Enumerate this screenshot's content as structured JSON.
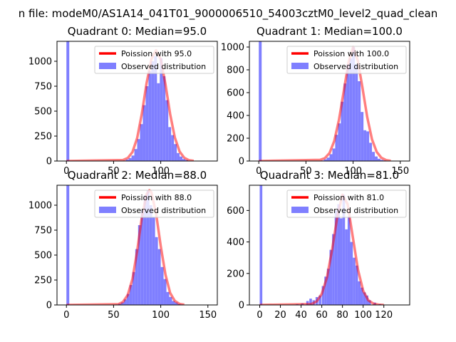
{
  "figure": {
    "suptitle": "n file: modeM0/AS1A14_041T01_9000006510_54003cztM0_level2_quad_clean"
  },
  "chart_data": [
    {
      "type": "bar",
      "title": "Quadrant 0: Median=95.0",
      "xlim": [
        -10,
        160
      ],
      "ylim": [
        0,
        1200
      ],
      "xticks": [
        0,
        50,
        100
      ],
      "yticks": [
        0,
        250,
        500,
        750,
        1000
      ],
      "legend": {
        "position": "top-right",
        "entries": [
          "Poission with 95.0",
          "Observed distribution"
        ]
      },
      "series": [
        {
          "name": "Observed distribution",
          "kind": "histogram",
          "color": "#7f7fff",
          "bin_width": 3.0,
          "bin_starts": [
            0,
            60,
            63,
            66,
            69,
            72,
            75,
            78,
            81,
            84,
            87,
            90,
            93,
            96,
            99,
            102,
            105,
            108,
            111,
            114,
            117,
            120,
            123,
            126
          ],
          "counts": [
            1200,
            5,
            15,
            30,
            55,
            120,
            220,
            370,
            560,
            750,
            900,
            1000,
            1050,
            780,
            1030,
            850,
            610,
            340,
            260,
            170,
            80,
            45,
            20,
            10
          ]
        },
        {
          "name": "Poission with 95.0",
          "kind": "curve",
          "color": "#ff0000",
          "x": [
            0,
            60,
            65,
            70,
            75,
            80,
            85,
            90,
            95,
            100,
            105,
            110,
            115,
            120,
            125,
            130,
            135
          ],
          "y": [
            0,
            10,
            30,
            90,
            230,
            475,
            780,
            1020,
            1110,
            1020,
            770,
            470,
            235,
            95,
            32,
            8,
            2
          ]
        }
      ]
    },
    {
      "type": "bar",
      "title": "Quadrant 1: Median=100.0",
      "xlim": [
        -10,
        160
      ],
      "ylim": [
        0,
        1050
      ],
      "xticks": [
        0,
        50,
        100,
        150
      ],
      "yticks": [
        0,
        200,
        400,
        600,
        800,
        1000
      ],
      "legend": {
        "position": "top-right",
        "entries": [
          "Poission with 100.0",
          "Observed distribution"
        ]
      },
      "series": [
        {
          "name": "Observed distribution",
          "kind": "histogram",
          "color": "#7f7fff",
          "bin_width": 3.0,
          "bin_starts": [
            0,
            66,
            69,
            72,
            75,
            78,
            81,
            84,
            87,
            90,
            93,
            96,
            99,
            102,
            105,
            108,
            111,
            114,
            117,
            120,
            123,
            126,
            129,
            132
          ],
          "counts": [
            1050,
            5,
            15,
            30,
            60,
            110,
            230,
            330,
            520,
            680,
            850,
            900,
            1000,
            850,
            700,
            430,
            270,
            260,
            160,
            80,
            40,
            20,
            10,
            5
          ]
        },
        {
          "name": "Poission with 100.0",
          "kind": "curve",
          "color": "#ff0000",
          "x": [
            0,
            65,
            70,
            75,
            80,
            85,
            90,
            95,
            100,
            105,
            110,
            115,
            120,
            125,
            130,
            135,
            140
          ],
          "y": [
            0,
            10,
            25,
            70,
            175,
            360,
            610,
            860,
            1000,
            880,
            640,
            385,
            190,
            80,
            28,
            8,
            2
          ]
        }
      ]
    },
    {
      "type": "bar",
      "title": "Quadrant 2: Median=88.0",
      "xlim": [
        -10,
        160
      ],
      "ylim": [
        0,
        1200
      ],
      "xticks": [
        0,
        50,
        100,
        150
      ],
      "yticks": [
        0,
        250,
        500,
        750,
        1000
      ],
      "legend": {
        "position": "top-right",
        "entries": [
          "Poission with 88.0",
          "Observed distribution"
        ]
      },
      "series": [
        {
          "name": "Observed distribution",
          "kind": "histogram",
          "color": "#7f7fff",
          "bin_width": 3.0,
          "bin_starts": [
            0,
            52,
            55,
            58,
            61,
            64,
            67,
            70,
            73,
            76,
            79,
            82,
            85,
            88,
            91,
            94,
            97,
            100,
            103,
            106,
            109,
            112,
            115,
            118,
            121
          ],
          "counts": [
            1200,
            5,
            12,
            25,
            55,
            110,
            200,
            330,
            560,
            800,
            950,
            1100,
            1150,
            1000,
            880,
            680,
            560,
            380,
            260,
            130,
            80,
            40,
            25,
            10,
            5
          ]
        },
        {
          "name": "Poission with 88.0",
          "kind": "curve",
          "color": "#ff0000",
          "x": [
            0,
            55,
            60,
            65,
            70,
            75,
            80,
            85,
            88,
            90,
            95,
            100,
            105,
            110,
            115,
            120,
            125
          ],
          "y": [
            0,
            8,
            30,
            100,
            260,
            540,
            880,
            1110,
            1150,
            1130,
            920,
            590,
            305,
            120,
            40,
            10,
            3
          ]
        }
      ]
    },
    {
      "type": "bar",
      "title": "Quadrant 3: Median=81.0",
      "xlim": [
        -10,
        145
      ],
      "ylim": [
        0,
        760
      ],
      "xticks": [
        0,
        20,
        40,
        60,
        80,
        100,
        120
      ],
      "yticks": [
        0,
        200,
        400,
        600
      ],
      "legend": {
        "position": "top-right",
        "entries": [
          "Poission with 81.0",
          "Observed distribution"
        ]
      },
      "series": [
        {
          "name": "Observed distribution",
          "kind": "histogram",
          "color": "#7f7fff",
          "bin_width": 2.5,
          "bin_starts": [
            0,
            35,
            40,
            45,
            48,
            51,
            54,
            57,
            60,
            62.5,
            65,
            67.5,
            70,
            72.5,
            75,
            77.5,
            80,
            82.5,
            85,
            87.5,
            90,
            92.5,
            95,
            97.5,
            100,
            102.5,
            105,
            110,
            115
          ],
          "counts": [
            760,
            5,
            10,
            25,
            40,
            30,
            50,
            60,
            120,
            180,
            230,
            350,
            450,
            600,
            640,
            550,
            700,
            480,
            560,
            400,
            300,
            250,
            150,
            110,
            80,
            60,
            30,
            15,
            5
          ]
        },
        {
          "name": "Poission with 81.0",
          "kind": "curve",
          "color": "#ff0000",
          "x": [
            0,
            50,
            55,
            60,
            65,
            70,
            75,
            80,
            85,
            90,
            95,
            100,
            105,
            110,
            115,
            120
          ],
          "y": [
            0,
            6,
            22,
            70,
            175,
            350,
            560,
            700,
            640,
            430,
            225,
            90,
            30,
            8,
            2,
            0
          ]
        }
      ]
    }
  ]
}
